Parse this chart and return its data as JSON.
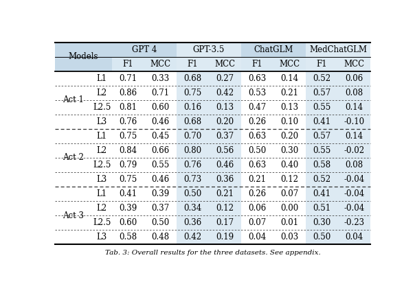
{
  "col_groups": [
    "GPT 4",
    "GPT-3.5",
    "ChatGLM",
    "MedChatGLM"
  ],
  "sub_cols": [
    "F1",
    "MCC",
    "F1",
    "MCC",
    "F1",
    "MCC",
    "F1",
    "MCC"
  ],
  "row_groups": [
    "Act 1",
    "Act 2",
    "Act 3"
  ],
  "row_labels": [
    "L1",
    "L2",
    "L2.5",
    "L3"
  ],
  "data": [
    [
      0.71,
      0.33,
      0.68,
      0.27,
      0.63,
      0.14,
      0.52,
      0.06
    ],
    [
      0.86,
      0.71,
      0.75,
      0.42,
      0.53,
      0.21,
      0.57,
      0.08
    ],
    [
      0.81,
      0.6,
      0.16,
      0.13,
      0.47,
      0.13,
      0.55,
      0.14
    ],
    [
      0.76,
      0.46,
      0.68,
      0.2,
      0.26,
      0.1,
      0.41,
      -0.1
    ],
    [
      0.75,
      0.45,
      0.7,
      0.37,
      0.63,
      0.2,
      0.57,
      0.14
    ],
    [
      0.84,
      0.66,
      0.8,
      0.56,
      0.5,
      0.3,
      0.55,
      -0.02
    ],
    [
      0.79,
      0.55,
      0.76,
      0.46,
      0.63,
      0.4,
      0.58,
      0.08
    ],
    [
      0.75,
      0.46,
      0.73,
      0.36,
      0.21,
      0.12,
      0.52,
      -0.04
    ],
    [
      0.41,
      0.39,
      0.5,
      0.21,
      0.26,
      0.07,
      0.41,
      -0.04
    ],
    [
      0.39,
      0.37,
      0.34,
      0.12,
      0.06,
      0.0,
      0.51,
      -0.04
    ],
    [
      0.6,
      0.5,
      0.36,
      0.17,
      0.07,
      0.01,
      0.3,
      -0.23
    ],
    [
      0.58,
      0.48,
      0.42,
      0.19,
      0.04,
      0.03,
      0.5,
      0.04
    ]
  ],
  "header_bg": "#c5d9e8",
  "subheader_bg": "#d9e8f2",
  "alt_col_bg": "#ddeaf3",
  "white_bg": "#ffffff",
  "font_size": 8.5,
  "header_font_size": 8.5,
  "caption": "Tab. 3: Overall results for the three datasets. See appendix."
}
